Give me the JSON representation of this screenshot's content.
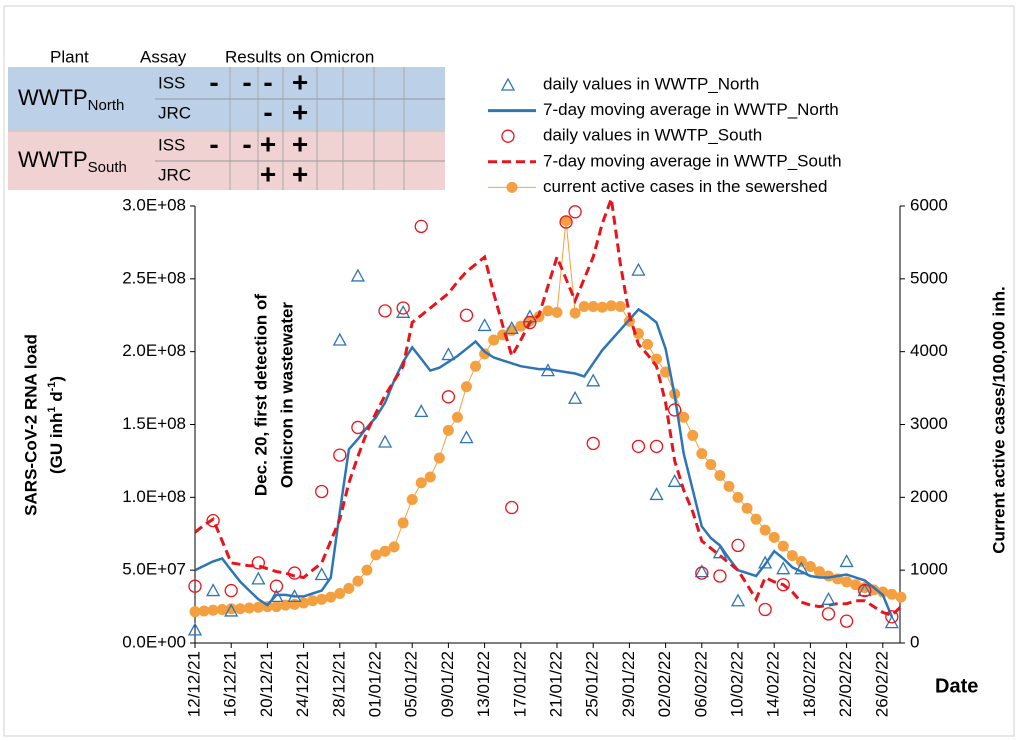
{
  "table": {
    "headers": [
      "Plant",
      "Assay",
      "Results on Omicron"
    ],
    "groups": [
      {
        "plant": "WWTP",
        "subscript": "North",
        "rows": [
          {
            "assay": "ISS",
            "results": [
              "-",
              "-",
              "-",
              "+"
            ]
          },
          {
            "assay": "JRC",
            "results": [
              null,
              null,
              "-",
              "+"
            ]
          }
        ]
      },
      {
        "plant": "WWTP",
        "subscript": "South",
        "rows": [
          {
            "assay": "ISS",
            "results": [
              "-",
              "-",
              "+",
              "+"
            ]
          },
          {
            "assay": "JRC",
            "results": [
              null,
              null,
              "+",
              "+"
            ]
          }
        ]
      }
    ]
  },
  "chart_data": {
    "type": "line",
    "ylabel": [
      "SARS-CoV-2 RNA load",
      "(GU inh",
      "1",
      " d",
      "-1",
      ")"
    ],
    "y2label": "Current active cases/100,000 inh.",
    "xlabel": "Date",
    "annotation": [
      "Dec. 20, first detection of",
      "Omicron in wastewater"
    ],
    "categories": [
      "12/12/21",
      null,
      null,
      null,
      "16/12/21",
      null,
      null,
      null,
      "20/12/21",
      null,
      null,
      null,
      "24/12/21",
      null,
      null,
      null,
      "28/12/21",
      null,
      null,
      null,
      "01/01/22",
      null,
      null,
      null,
      "05/01/22",
      null,
      null,
      null,
      "09/01/22",
      null,
      null,
      null,
      "13/01/22",
      null,
      null,
      null,
      "17/01/22",
      null,
      null,
      null,
      "21/01/22",
      null,
      null,
      null,
      "25/01/22",
      null,
      null,
      null,
      "29/01/22",
      null,
      null,
      null,
      "02/02/22",
      null,
      null,
      null,
      "06/02/22",
      null,
      null,
      null,
      "10/02/22",
      null,
      null,
      null,
      "14/02/22",
      null,
      null,
      null,
      "18/02/22",
      null,
      null,
      null,
      "22/02/22",
      null,
      null,
      null,
      "26/02/22",
      null,
      null
    ],
    "ylim": [
      0,
      300000000.0
    ],
    "yticks": [
      {
        "value": 0,
        "label": "0.0E+00"
      },
      {
        "value": 50000000.0,
        "label": "5.0E+07"
      },
      {
        "value": 100000000.0,
        "label": "1.0E+08"
      },
      {
        "value": 150000000.0,
        "label": "1.5E+08"
      },
      {
        "value": 200000000.0,
        "label": "2.0E+08"
      },
      {
        "value": 250000000.0,
        "label": "2.5E+08"
      },
      {
        "value": 300000000.0,
        "label": "3.0E+08"
      }
    ],
    "y2lim": [
      0,
      6000
    ],
    "y2ticks": [
      0,
      1000,
      2000,
      3000,
      4000,
      5000,
      6000
    ],
    "grid": false,
    "series": [
      {
        "name": "daily values in WWTP_North",
        "color": "#2e75b6",
        "style": "triangle",
        "values": [
          9000000.0,
          null,
          36000000.0,
          null,
          22000000.0,
          null,
          null,
          44000000.0,
          null,
          32000000.0,
          null,
          32000000.0,
          null,
          null,
          47000000.0,
          null,
          208000000.0,
          null,
          252000000.0,
          null,
          null,
          138000000.0,
          null,
          227000000.0,
          null,
          159000000.0,
          null,
          null,
          198000000.0,
          null,
          141000000.0,
          null,
          218000000.0,
          null,
          null,
          216000000.0,
          null,
          224000000.0,
          null,
          187000000.0,
          null,
          null,
          168000000.0,
          null,
          180000000.0,
          null,
          null,
          null,
          null,
          256000000.0,
          null,
          102000000.0,
          null,
          111000000.0,
          null,
          null,
          49000000.0,
          null,
          62000000.0,
          null,
          29000000.0,
          null,
          null,
          55000000.0,
          null,
          51000000.0,
          null,
          51000000.0,
          null,
          null,
          30000000.0,
          null,
          56000000.0,
          null,
          36000000.0,
          null,
          null,
          14000000.0,
          null
        ]
      },
      {
        "name": "7-day moving average in WWTP_North",
        "color": "#2e75b6",
        "style": "solid",
        "values": [
          50000000.0,
          53000000.0,
          56000000.0,
          58000000.0,
          50000000.0,
          42000000.0,
          36000000.0,
          30000000.0,
          26000000.0,
          33000000.0,
          33000000.0,
          32000000.0,
          32000000.0,
          34000000.0,
          36000000.0,
          45000000.0,
          90000000.0,
          133000000.0,
          140000000.0,
          148000000.0,
          155000000.0,
          165000000.0,
          180000000.0,
          193000000.0,
          203000000.0,
          195000000.0,
          187000000.0,
          189000000.0,
          193000000.0,
          197000000.0,
          202000000.0,
          207000000.0,
          200000000.0,
          196000000.0,
          194000000.0,
          192000000.0,
          190000000.0,
          189000000.0,
          188000000.0,
          188000000.0,
          187000000.0,
          186000000.0,
          185000000.0,
          183000000.0,
          192000000.0,
          201000000.0,
          208000000.0,
          215000000.0,
          222000000.0,
          229000000.0,
          225000000.0,
          220000000.0,
          202000000.0,
          170000000.0,
          130000000.0,
          105000000.0,
          80000000.0,
          72000000.0,
          67000000.0,
          58000000.0,
          50000000.0,
          48000000.0,
          46000000.0,
          54000000.0,
          63000000.0,
          58000000.0,
          52000000.0,
          49000000.0,
          46000000.0,
          45000000.0,
          45000000.0,
          46000000.0,
          47000000.0,
          45000000.0,
          43000000.0,
          38000000.0,
          33000000.0,
          18000000.0,
          null
        ]
      },
      {
        "name": "daily values in WWTP_South",
        "color": "#e8141c",
        "style": "circle",
        "values": [
          39000000.0,
          null,
          84000000.0,
          null,
          36000000.0,
          null,
          null,
          55000000.0,
          null,
          39000000.0,
          null,
          48000000.0,
          null,
          null,
          104000000.0,
          null,
          129000000.0,
          null,
          148000000.0,
          null,
          null,
          228000000.0,
          null,
          230000000.0,
          null,
          286000000.0,
          null,
          null,
          169000000.0,
          null,
          225000000.0,
          null,
          null,
          null,
          null,
          93000000.0,
          null,
          220000000.0,
          null,
          null,
          null,
          289000000.0,
          296000000.0,
          null,
          137000000.0,
          null,
          null,
          null,
          null,
          135000000.0,
          null,
          135000000.0,
          null,
          160000000.0,
          null,
          null,
          48000000.0,
          null,
          46000000.0,
          null,
          67000000.0,
          null,
          null,
          23000000.0,
          null,
          40000000.0,
          null,
          null,
          null,
          null,
          20000000.0,
          null,
          15000000.0,
          null,
          36000000.0,
          null,
          null,
          18000000.0,
          null
        ]
      },
      {
        "name": "7-day moving average in WWTP_South",
        "color": "#e8141c",
        "style": "dashed",
        "values": [
          76000000.0,
          81000000.0,
          85000000.0,
          70000000.0,
          55000000.0,
          54000000.0,
          53000000.0,
          53000000.0,
          51000000.0,
          49000000.0,
          48000000.0,
          46000000.0,
          45000000.0,
          50000000.0,
          55000000.0,
          70000000.0,
          85000000.0,
          110000000.0,
          128000000.0,
          145000000.0,
          158000000.0,
          170000000.0,
          180000000.0,
          190000000.0,
          220000000.0,
          225000000.0,
          230000000.0,
          235000000.0,
          240000000.0,
          248000000.0,
          255000000.0,
          260000000.0,
          265000000.0,
          240000000.0,
          218000000.0,
          197000000.0,
          208000000.0,
          220000000.0,
          225000000.0,
          245000000.0,
          265000000.0,
          250000000.0,
          235000000.0,
          250000000.0,
          265000000.0,
          288000000.0,
          305000000.0,
          260000000.0,
          225000000.0,
          205000000.0,
          198000000.0,
          190000000.0,
          165000000.0,
          125000000.0,
          105000000.0,
          90000000.0,
          70000000.0,
          65000000.0,
          60000000.0,
          55000000.0,
          50000000.0,
          40000000.0,
          30000000.0,
          45000000.0,
          42000000.0,
          40000000.0,
          35000000.0,
          28000000.0,
          26000000.0,
          25000000.0,
          26000000.0,
          27000000.0,
          27000000.0,
          29000000.0,
          29000000.0,
          25000000.0,
          21000000.0,
          19000000.0,
          25000000.0
        ]
      },
      {
        "name": "current active cases in the sewershed",
        "color": "#f5a040",
        "style": "line-dot",
        "axis": "y2",
        "values": [
          430,
          440,
          450,
          460,
          470,
          470,
          480,
          490,
          500,
          500,
          520,
          530,
          550,
          580,
          600,
          630,
          680,
          750,
          850,
          1000,
          1210,
          1260,
          1320,
          1650,
          1970,
          2200,
          2280,
          2540,
          2920,
          3100,
          3520,
          3800,
          3970,
          4160,
          4230,
          4290,
          4350,
          4420,
          4480,
          4560,
          4540,
          5800,
          4530,
          4620,
          4620,
          4610,
          4630,
          4620,
          4420,
          4250,
          4100,
          3900,
          3720,
          3420,
          3100,
          2850,
          2600,
          2450,
          2300,
          2150,
          2000,
          1850,
          1700,
          1550,
          1450,
          1330,
          1200,
          1120,
          1050,
          980,
          920,
          880,
          840,
          800,
          760,
          730,
          700,
          670,
          630
        ]
      }
    ]
  }
}
